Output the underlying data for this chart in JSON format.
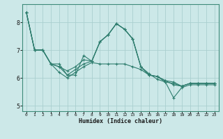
{
  "xlabel": "Humidex (Indice chaleur)",
  "ylabel": "",
  "background_color": "#cce8e8",
  "grid_color": "#aacfcf",
  "line_color": "#2e7d6e",
  "xlim": [
    -0.5,
    23.5
  ],
  "ylim": [
    4.8,
    8.65
  ],
  "xticks": [
    0,
    1,
    2,
    3,
    4,
    5,
    6,
    7,
    8,
    9,
    10,
    11,
    12,
    13,
    14,
    15,
    16,
    17,
    18,
    19,
    20,
    21,
    22,
    23
  ],
  "yticks": [
    5,
    6,
    7,
    8
  ],
  "line_data": [
    {
      "x": [
        0,
        1,
        2,
        3,
        4,
        5,
        6,
        7,
        8,
        9,
        10,
        11,
        12,
        13,
        14,
        15,
        16,
        17,
        18,
        19,
        20,
        21,
        22,
        23
      ],
      "y": [
        8.35,
        7.0,
        7.0,
        6.5,
        6.5,
        6.1,
        6.1,
        6.8,
        6.6,
        7.3,
        7.55,
        7.95,
        7.75,
        7.4,
        6.4,
        6.1,
        6.05,
        5.9,
        5.85,
        5.7,
        5.8,
        5.8,
        5.8,
        5.8
      ]
    },
    {
      "x": [
        0,
        1,
        2,
        3,
        4,
        5,
        6,
        7,
        8,
        9,
        10,
        11,
        12,
        13,
        14,
        15,
        16,
        17,
        18,
        19,
        20,
        21,
        22,
        23
      ],
      "y": [
        8.35,
        7.0,
        7.0,
        6.5,
        6.4,
        6.25,
        6.4,
        6.65,
        6.6,
        7.3,
        7.55,
        7.95,
        7.75,
        7.4,
        6.4,
        6.15,
        5.95,
        5.85,
        5.8,
        5.7,
        5.8,
        5.8,
        5.8,
        5.8
      ]
    },
    {
      "x": [
        0,
        1,
        2,
        3,
        4,
        5,
        6,
        7,
        8,
        9,
        10,
        11,
        12,
        13,
        14,
        15,
        16,
        17,
        18,
        19,
        20,
        21,
        22,
        23
      ],
      "y": [
        8.35,
        7.0,
        7.0,
        6.5,
        6.4,
        6.1,
        6.3,
        6.5,
        6.6,
        7.3,
        7.55,
        7.95,
        7.75,
        7.4,
        6.4,
        6.1,
        6.05,
        5.9,
        5.75,
        5.7,
        5.8,
        5.8,
        5.8,
        5.8
      ]
    },
    {
      "x": [
        0,
        1,
        2,
        3,
        4,
        5,
        6,
        7,
        8,
        9,
        10,
        11,
        12,
        13,
        14,
        15,
        16,
        17,
        18,
        19,
        20,
        21,
        22,
        23
      ],
      "y": [
        8.35,
        7.0,
        7.0,
        6.5,
        6.2,
        6.0,
        6.2,
        6.4,
        6.55,
        6.5,
        6.5,
        6.5,
        6.5,
        6.4,
        6.3,
        6.1,
        6.05,
        5.85,
        5.28,
        5.65,
        5.75,
        5.75,
        5.75,
        5.75
      ]
    }
  ]
}
